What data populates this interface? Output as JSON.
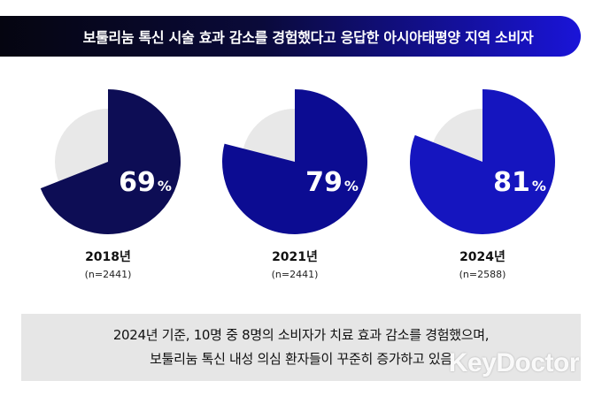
{
  "title": "보툴리눔 톡신 시술 효과 감소를 경험했다고 응답한 아시아태평양 지역 소비자",
  "chart_data": {
    "type": "pie",
    "charts": [
      {
        "year": "2018년",
        "n": "(n=2441)",
        "value": 69,
        "label": "69",
        "unit": "%",
        "color": "#0d0d55"
      },
      {
        "year": "2021년",
        "n": "(n=2441)",
        "value": 79,
        "label": "79",
        "unit": "%",
        "color": "#0c0c92"
      },
      {
        "year": "2024년",
        "n": "(n=2588)",
        "value": 81,
        "label": "81",
        "unit": "%",
        "color": "#1515bf"
      }
    ],
    "remainder_color": "#e8e8e8"
  },
  "note": {
    "line1": "2024년 기준, 10명 중 8명의 소비자가 치료 효과 감소를 경험했으며,",
    "line2": "보툴리눔 톡신 내성 의심 환자들이 꾸준히 증가하고 있음"
  },
  "watermark": "KeyDoctor"
}
